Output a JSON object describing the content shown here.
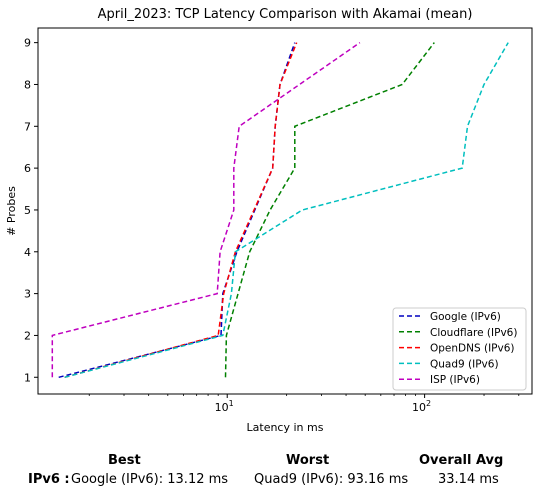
{
  "chart_data": {
    "type": "line",
    "title": "April_2023: TCP Latency Comparison with Akamai (mean)",
    "xlabel": "Latency in ms",
    "ylabel": "# Probes",
    "xscale": "log",
    "xlim": [
      1.1,
      350
    ],
    "ylim": [
      0.6,
      9.35
    ],
    "yticks": [
      1,
      2,
      3,
      4,
      5,
      6,
      7,
      8,
      9
    ],
    "xtick_major": [
      {
        "value": 10,
        "label": "10^1"
      },
      {
        "value": 100,
        "label": "10^2"
      }
    ],
    "grid": false,
    "legend_position": "lower-right",
    "series": [
      {
        "name": "Google (IPv6)",
        "color": "#0000bf",
        "x": [
          1.4,
          9.3,
          9.5,
          11.2,
          17.0,
          17.5,
          18.5,
          22.0
        ],
        "y": [
          1,
          2,
          3,
          4,
          6,
          7,
          8,
          9
        ]
      },
      {
        "name": "Cloudflare (IPv6)",
        "color": "#008000",
        "x": [
          9.8,
          9.9,
          13.0,
          16.5,
          22.0,
          22.0,
          77.0,
          112.0
        ],
        "y": [
          1,
          2,
          4,
          5,
          6,
          7,
          8,
          9
        ]
      },
      {
        "name": "OpenDNS (IPv6)",
        "color": "#ff0000",
        "x": [
          1.5,
          9.0,
          9.6,
          11.0,
          17.0,
          17.5,
          18.5,
          22.5
        ],
        "y": [
          1,
          2,
          3,
          4,
          6,
          7,
          8,
          9
        ]
      },
      {
        "name": "Quad9 (IPv6)",
        "color": "#00bfbf",
        "x": [
          1.5,
          9.5,
          10.5,
          11.0,
          24.0,
          155.0,
          165.0,
          200.0,
          265.0
        ],
        "y": [
          1,
          2,
          3,
          4,
          5,
          6,
          7,
          8,
          9
        ]
      },
      {
        "name": "ISP (IPv6)",
        "color": "#bf00bf",
        "x": [
          1.3,
          1.3,
          8.9,
          9.2,
          10.8,
          10.8,
          11.5,
          47.0
        ],
        "y": [
          1,
          2,
          3,
          4,
          5,
          6,
          7,
          9
        ]
      }
    ]
  },
  "summary": {
    "best_header": "Best",
    "worst_header": "Worst",
    "avg_header": "Overall Avg",
    "row_label": "IPv6 :",
    "best_value": "Google (IPv6): 13.12 ms",
    "worst_value": "Quad9 (IPv6): 93.16 ms",
    "avg_value": "33.14 ms"
  }
}
